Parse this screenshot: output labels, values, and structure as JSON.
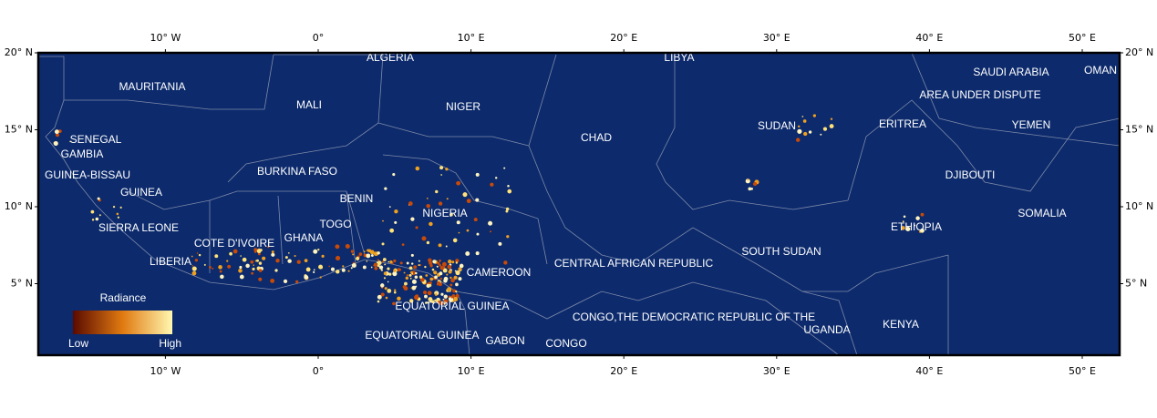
{
  "map": {
    "lon_ticks": [
      {
        "value": -10,
        "label": "10° W"
      },
      {
        "value": 0,
        "label": "0°"
      },
      {
        "value": 10,
        "label": "10° E"
      },
      {
        "value": 20,
        "label": "20° E"
      },
      {
        "value": 30,
        "label": "30° E"
      },
      {
        "value": 40,
        "label": "40° E"
      },
      {
        "value": 50,
        "label": "50° E"
      }
    ],
    "lat_ticks": [
      {
        "value": 20,
        "label": "20° N"
      },
      {
        "value": 15,
        "label": "15° N"
      },
      {
        "value": 10,
        "label": "10° N"
      },
      {
        "value": 5,
        "label": "5° N"
      }
    ],
    "countries": [
      "ALGERIA",
      "LIBYA",
      "MAURITANIA",
      "MALI",
      "NIGER",
      "CHAD",
      "SUDAN",
      "ERITREA",
      "SAUDI ARABIA",
      "OMAN",
      "AREA UNDER DISPUTE",
      "YEMEN",
      "DJIBOUTI",
      "SOMALIA",
      "ETHIOPIA",
      "SENEGAL",
      "GAMBIA",
      "GUINEA-BISSAU",
      "GUINEA",
      "BURKINA FASO",
      "BENIN",
      "TOGO",
      "NIGERIA",
      "SIERRA LEONE",
      "GHANA",
      "COTE D'IVOIRE",
      "LIBERIA",
      "CAMEROON",
      "CENTRAL AFRICAN REPUBLIC",
      "SOUTH SUDAN",
      "EQUATORIAL GUINEA",
      "CONGO,THE DEMOCRATIC REPUBLIC OF THE",
      "UGANDA",
      "KENYA",
      "EQUATORIAL GUINEA",
      "GABON",
      "CONGO"
    ],
    "legend": {
      "title": "Radiance",
      "low": "Low",
      "high": "High"
    }
  }
}
